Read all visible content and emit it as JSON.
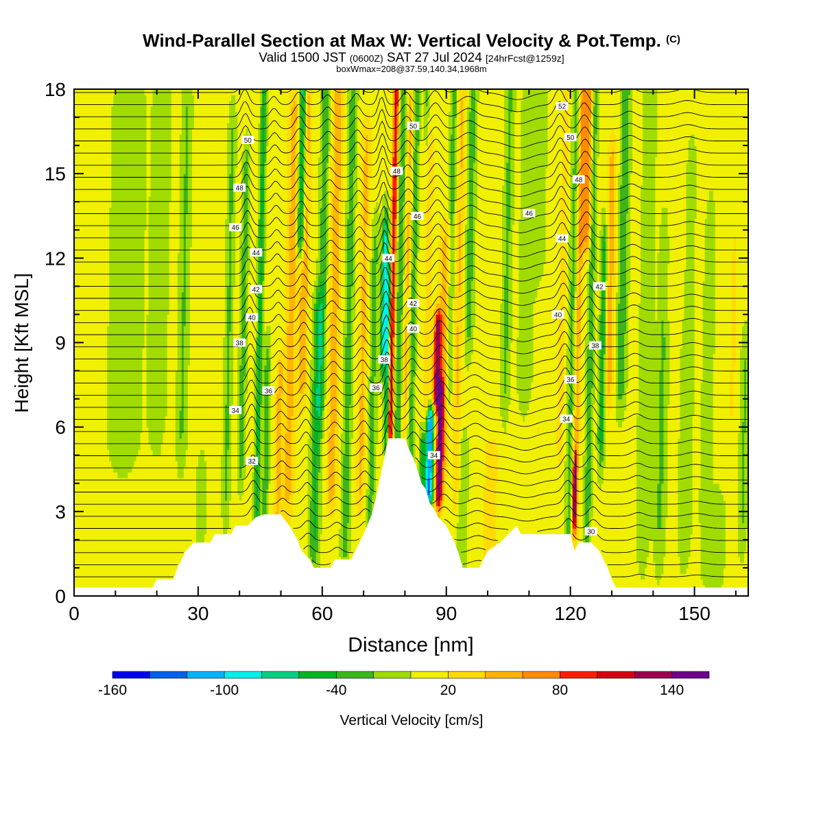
{
  "header": {
    "title": "Wind-Parallel Section at Max W: Vertical Velocity & Pot.Temp.",
    "title_mark": "(C)",
    "valid_prefix": "Valid 1500 JST",
    "valid_zulu": "(0600Z)",
    "valid_date": "SAT 27 Jul 2024",
    "forecast": "[24hrFcst@1259z]",
    "box_info": "boxWmax=208@37.59,140.34,1968m"
  },
  "chart_data": {
    "type": "heatmap",
    "xlabel": "Distance [nm]",
    "ylabel": "Height [Kft MSL]",
    "xlim": [
      0,
      163
    ],
    "ylim": [
      0,
      18
    ],
    "x_ticks": [
      0,
      30,
      60,
      90,
      120,
      150
    ],
    "y_ticks": [
      0,
      3,
      6,
      9,
      12,
      15,
      18
    ],
    "colorbar": {
      "label": "Vertical Velocity [cm/s]",
      "tick_values": [
        -160,
        -100,
        -40,
        20,
        80,
        140
      ],
      "bins": [
        -160,
        -140,
        -120,
        -100,
        -80,
        -60,
        -40,
        -20,
        0,
        20,
        40,
        60,
        80,
        100,
        120,
        140,
        160
      ],
      "colors": [
        "#0000f0",
        "#0060f0",
        "#00b4f8",
        "#00f0e8",
        "#00d080",
        "#00b428",
        "#3cb41c",
        "#a0dc00",
        "#f0f000",
        "#ffdc00",
        "#ffb400",
        "#ff8c00",
        "#ff1e00",
        "#d70012",
        "#9a0050",
        "#6e008c"
      ]
    },
    "theta_labels": [
      {
        "x": 42,
        "y": 16.2,
        "text": "50"
      },
      {
        "x": 40,
        "y": 14.5,
        "text": "48"
      },
      {
        "x": 39,
        "y": 13.1,
        "text": "46"
      },
      {
        "x": 44,
        "y": 12.2,
        "text": "44"
      },
      {
        "x": 44,
        "y": 10.9,
        "text": "42"
      },
      {
        "x": 43,
        "y": 9.9,
        "text": "40"
      },
      {
        "x": 40,
        "y": 9.0,
        "text": "38"
      },
      {
        "x": 47,
        "y": 7.3,
        "text": "36"
      },
      {
        "x": 39,
        "y": 6.6,
        "text": "34"
      },
      {
        "x": 43,
        "y": 4.8,
        "text": "32"
      },
      {
        "x": 82,
        "y": 16.7,
        "text": "50"
      },
      {
        "x": 78,
        "y": 15.1,
        "text": "48"
      },
      {
        "x": 83,
        "y": 13.5,
        "text": "46"
      },
      {
        "x": 76,
        "y": 12.0,
        "text": "44"
      },
      {
        "x": 82,
        "y": 10.4,
        "text": "42"
      },
      {
        "x": 82,
        "y": 9.5,
        "text": "40"
      },
      {
        "x": 75,
        "y": 8.4,
        "text": "38"
      },
      {
        "x": 73,
        "y": 7.4,
        "text": "36"
      },
      {
        "x": 87,
        "y": 5.0,
        "text": "34"
      },
      {
        "x": 118,
        "y": 17.4,
        "text": "52"
      },
      {
        "x": 120,
        "y": 16.3,
        "text": "50"
      },
      {
        "x": 122,
        "y": 14.8,
        "text": "48"
      },
      {
        "x": 110,
        "y": 13.6,
        "text": "46"
      },
      {
        "x": 118,
        "y": 12.7,
        "text": "44"
      },
      {
        "x": 127,
        "y": 11.0,
        "text": "42"
      },
      {
        "x": 117,
        "y": 10.0,
        "text": "40"
      },
      {
        "x": 126,
        "y": 8.9,
        "text": "38"
      },
      {
        "x": 120,
        "y": 7.7,
        "text": "36"
      },
      {
        "x": 119,
        "y": 6.3,
        "text": "34"
      },
      {
        "x": 125,
        "y": 2.3,
        "text": "30"
      }
    ]
  }
}
